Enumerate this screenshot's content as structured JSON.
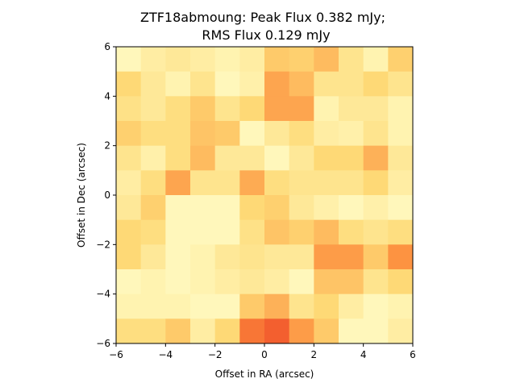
{
  "chart_data": {
    "type": "heatmap",
    "title_lines": [
      "ZTF18abmoung: Peak Flux 0.382 mJy;",
      "RMS Flux 0.129 mJy"
    ],
    "xlabel": "Offset in RA (arcsec)",
    "ylabel": "Offset in Dec (arcsec)",
    "xlim": [
      -6,
      6
    ],
    "ylim": [
      -6,
      6
    ],
    "xticks": [
      -6,
      -4,
      -2,
      0,
      2,
      4,
      6
    ],
    "yticks": [
      -6,
      -4,
      -2,
      0,
      2,
      4,
      6
    ],
    "xtick_labels": [
      "−6",
      "−4",
      "−2",
      "0",
      "2",
      "4",
      "6"
    ],
    "ytick_labels": [
      "−6",
      "−4",
      "−2",
      "0",
      "2",
      "4",
      "6"
    ],
    "grid": false,
    "colormap": "YlOrRd",
    "value_range": [
      0,
      1
    ],
    "rows_top_to_bottom": [
      [
        0.05,
        0.12,
        0.15,
        0.12,
        0.08,
        0.12,
        0.3,
        0.28,
        0.35,
        0.18,
        0.08,
        0.28
      ],
      [
        0.25,
        0.15,
        0.08,
        0.18,
        0.05,
        0.1,
        0.42,
        0.35,
        0.18,
        0.18,
        0.25,
        0.18
      ],
      [
        0.2,
        0.15,
        0.22,
        0.3,
        0.18,
        0.25,
        0.42,
        0.42,
        0.08,
        0.15,
        0.15,
        0.08
      ],
      [
        0.28,
        0.22,
        0.22,
        0.32,
        0.3,
        0.05,
        0.15,
        0.22,
        0.12,
        0.1,
        0.18,
        0.08
      ],
      [
        0.18,
        0.1,
        0.22,
        0.35,
        0.15,
        0.15,
        0.05,
        0.15,
        0.25,
        0.25,
        0.38,
        0.15
      ],
      [
        0.12,
        0.22,
        0.42,
        0.18,
        0.18,
        0.4,
        0.22,
        0.18,
        0.18,
        0.18,
        0.25,
        0.12
      ],
      [
        0.15,
        0.28,
        0.05,
        0.05,
        0.05,
        0.25,
        0.28,
        0.15,
        0.1,
        0.05,
        0.1,
        0.05
      ],
      [
        0.25,
        0.22,
        0.05,
        0.05,
        0.05,
        0.2,
        0.32,
        0.28,
        0.35,
        0.22,
        0.18,
        0.22
      ],
      [
        0.25,
        0.15,
        0.05,
        0.08,
        0.15,
        0.18,
        0.15,
        0.15,
        0.45,
        0.45,
        0.3,
        0.48
      ],
      [
        0.05,
        0.08,
        0.05,
        0.08,
        0.12,
        0.15,
        0.12,
        0.05,
        0.32,
        0.32,
        0.18,
        0.25
      ],
      [
        0.08,
        0.08,
        0.08,
        0.05,
        0.05,
        0.3,
        0.38,
        0.18,
        0.25,
        0.12,
        0.05,
        0.08
      ],
      [
        0.22,
        0.22,
        0.3,
        0.12,
        0.25,
        0.55,
        0.6,
        0.45,
        0.3,
        0.05,
        0.05,
        0.12
      ]
    ]
  }
}
